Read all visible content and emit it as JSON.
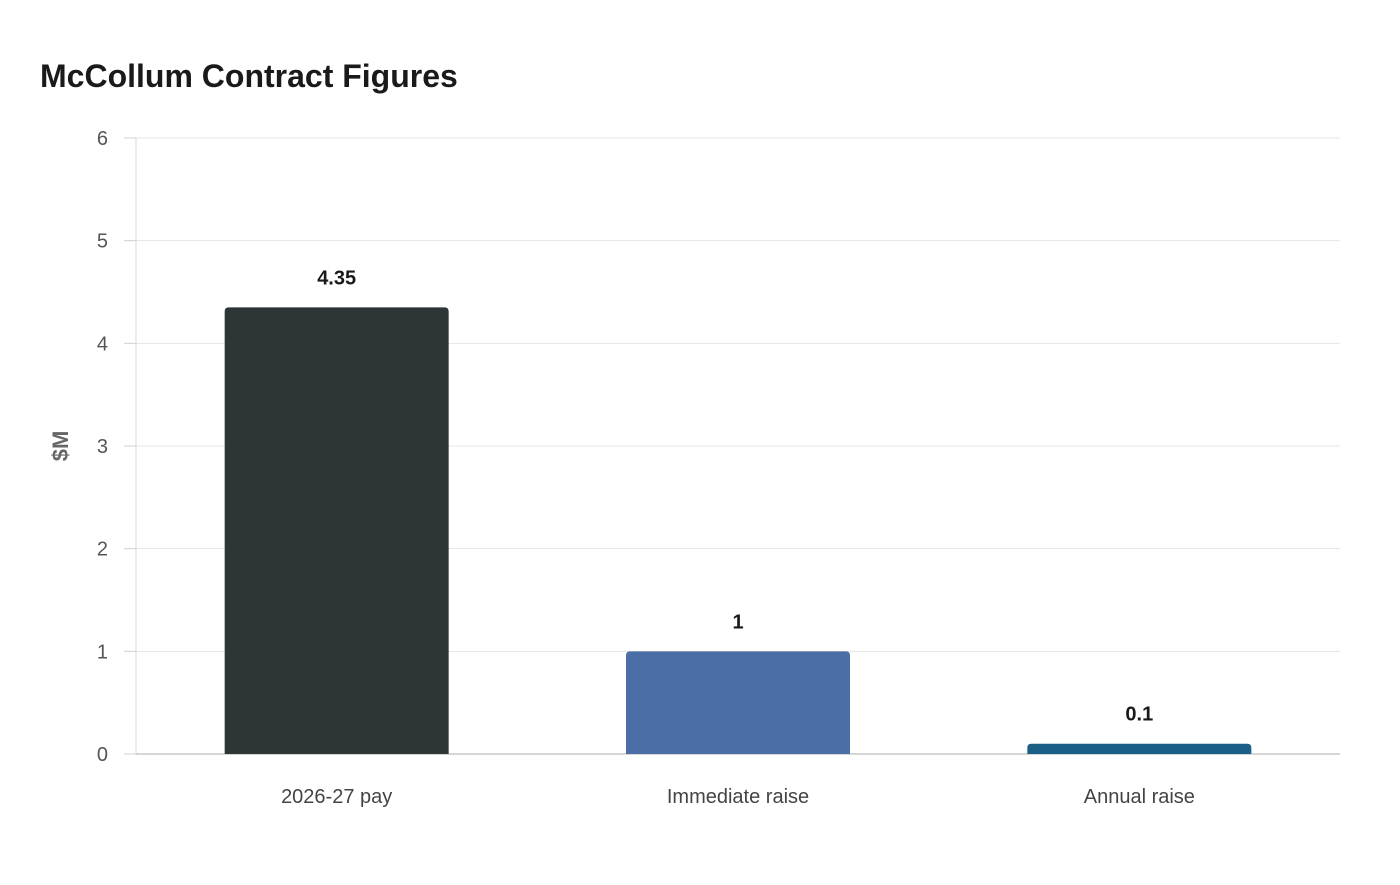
{
  "chart_data": {
    "type": "bar",
    "title": "McCollum Contract Figures",
    "xlabel": "",
    "ylabel": "$M",
    "categories": [
      "2026-27 pay",
      "Immediate raise",
      "Annual raise"
    ],
    "values": [
      4.35,
      1,
      0.1
    ],
    "value_labels": [
      "4.35",
      "1",
      "0.1"
    ],
    "colors": [
      "#2e3537",
      "#4a6ea5",
      "#1c5f86"
    ],
    "ylim": [
      0,
      6
    ],
    "yticks": [
      0,
      1,
      2,
      3,
      4,
      5,
      6
    ],
    "grid": true,
    "legend": "none"
  }
}
